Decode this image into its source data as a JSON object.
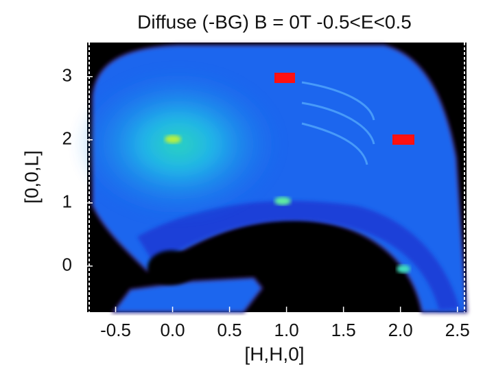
{
  "chart_data": {
    "type": "heatmap",
    "title": "Diffuse (-BG) B = 0T -0.5<E<0.5",
    "xlabel": "[H,H,0]",
    "ylabel": "[0,0,L]",
    "xlim": [
      -0.75,
      2.58
    ],
    "ylim": [
      -0.73,
      3.54
    ],
    "xticks": [
      -0.5,
      {
        "value": 0,
        "label": "0.0"
      },
      0.5,
      {
        "value": 1,
        "label": "1.0"
      },
      1.5,
      {
        "value": 2,
        "label": "2.0"
      },
      2.5
    ],
    "yticks": [
      0,
      1,
      2,
      3
    ]
  }
}
